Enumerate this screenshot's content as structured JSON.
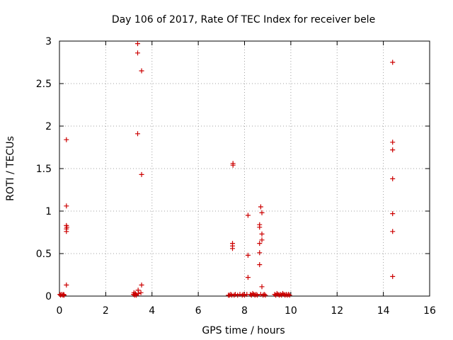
{
  "chart_data": {
    "type": "scatter",
    "title": "Day 106 of 2017, Rate Of TEC Index for receiver bele",
    "xlabel": "GPS time / hours",
    "ylabel": "ROTI / TECUs",
    "xlim": [
      0,
      16
    ],
    "ylim": [
      0,
      3
    ],
    "x_ticks": [
      "0",
      "2",
      "4",
      "6",
      "8",
      "10",
      "12",
      "14",
      "16"
    ],
    "y_ticks": [
      "0",
      "0.5",
      "1",
      "1.5",
      "2",
      "2.5",
      "3"
    ],
    "grid": true,
    "marker": "+",
    "color": "#cc0000",
    "series": [
      {
        "points": [
          [
            0.02,
            0.02
          ],
          [
            0.05,
            0.01
          ],
          [
            0.1,
            0.02
          ],
          [
            0.15,
            0.01
          ],
          [
            0.18,
            0.02
          ],
          [
            0.2,
            0.01
          ],
          [
            0.3,
            1.84
          ],
          [
            0.3,
            1.06
          ],
          [
            0.3,
            0.83
          ],
          [
            0.32,
            0.81
          ],
          [
            0.3,
            0.79
          ],
          [
            0.3,
            0.76
          ],
          [
            0.3,
            0.13
          ],
          [
            3.2,
            0.02
          ],
          [
            3.22,
            0.04
          ],
          [
            3.25,
            0.01
          ],
          [
            3.28,
            0.03
          ],
          [
            3.3,
            0.02
          ],
          [
            3.32,
            0.01
          ],
          [
            3.38,
            2.97
          ],
          [
            3.38,
            2.86
          ],
          [
            3.38,
            1.91
          ],
          [
            3.4,
            0.07
          ],
          [
            3.42,
            0.03
          ],
          [
            3.55,
            2.65
          ],
          [
            3.55,
            1.43
          ],
          [
            3.55,
            0.13
          ],
          [
            3.52,
            0.04
          ],
          [
            7.3,
            0.01
          ],
          [
            7.35,
            0.01
          ],
          [
            7.4,
            0.02
          ],
          [
            7.45,
            0.01
          ],
          [
            7.5,
            1.56
          ],
          [
            7.5,
            1.54
          ],
          [
            7.48,
            0.62
          ],
          [
            7.48,
            0.59
          ],
          [
            7.48,
            0.56
          ],
          [
            7.55,
            0.01
          ],
          [
            7.6,
            0.02
          ],
          [
            7.7,
            0.01
          ],
          [
            7.8,
            0.02
          ],
          [
            7.9,
            0.01
          ],
          [
            7.95,
            0.02
          ],
          [
            8.0,
            0.01
          ],
          [
            8.1,
            0.02
          ],
          [
            8.15,
            0.95
          ],
          [
            8.15,
            0.48
          ],
          [
            8.15,
            0.22
          ],
          [
            8.25,
            0.02
          ],
          [
            8.3,
            0.01
          ],
          [
            8.35,
            0.03
          ],
          [
            8.4,
            0.02
          ],
          [
            8.45,
            0.01
          ],
          [
            8.5,
            0.02
          ],
          [
            8.55,
            0.01
          ],
          [
            8.65,
            0.84
          ],
          [
            8.65,
            0.81
          ],
          [
            8.65,
            0.62
          ],
          [
            8.65,
            0.51
          ],
          [
            8.65,
            0.37
          ],
          [
            8.7,
            1.05
          ],
          [
            8.75,
            0.98
          ],
          [
            8.75,
            0.73
          ],
          [
            8.75,
            0.66
          ],
          [
            8.75,
            0.11
          ],
          [
            8.7,
            0.02
          ],
          [
            8.8,
            0.01
          ],
          [
            8.85,
            0.02
          ],
          [
            8.9,
            0.01
          ],
          [
            9.3,
            0.02
          ],
          [
            9.35,
            0.01
          ],
          [
            9.4,
            0.03
          ],
          [
            9.45,
            0.02
          ],
          [
            9.5,
            0.01
          ],
          [
            9.55,
            0.02
          ],
          [
            9.6,
            0.01
          ],
          [
            9.65,
            0.03
          ],
          [
            9.7,
            0.02
          ],
          [
            9.75,
            0.01
          ],
          [
            9.8,
            0.02
          ],
          [
            9.85,
            0.01
          ],
          [
            9.9,
            0.02
          ],
          [
            9.95,
            0.01
          ],
          [
            14.4,
            2.75
          ],
          [
            14.4,
            1.81
          ],
          [
            14.4,
            1.72
          ],
          [
            14.4,
            1.38
          ],
          [
            14.4,
            0.97
          ],
          [
            14.4,
            0.76
          ],
          [
            14.4,
            0.23
          ]
        ]
      }
    ]
  }
}
